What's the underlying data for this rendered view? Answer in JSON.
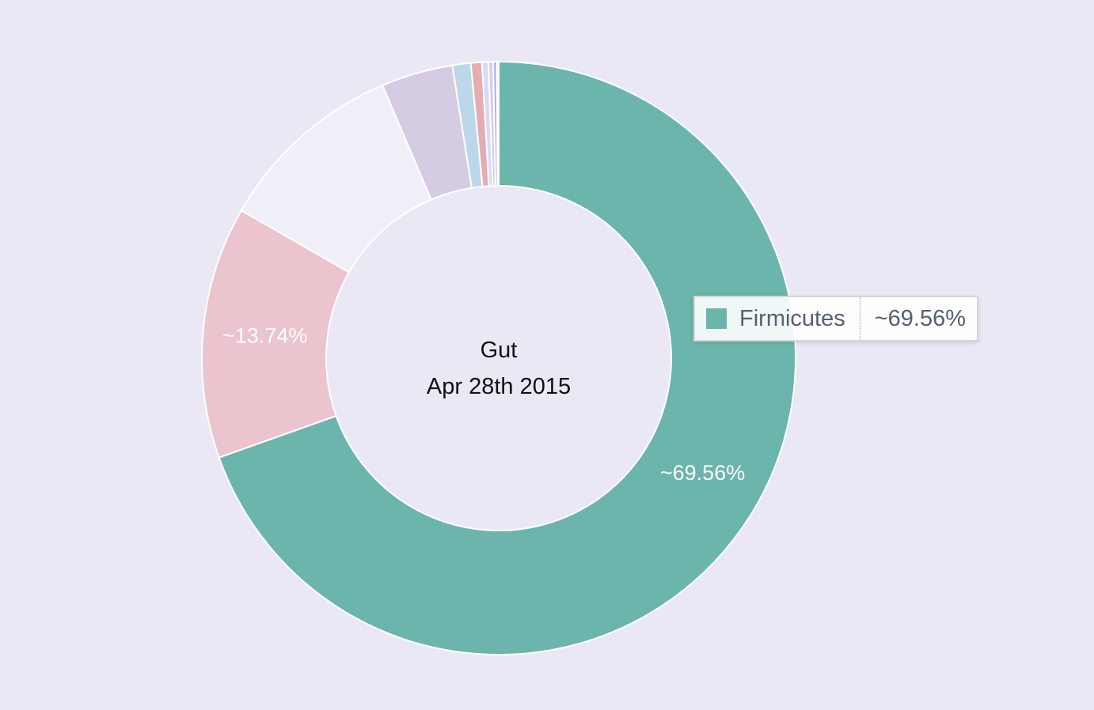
{
  "chart_data": {
    "type": "pie",
    "variant": "donut",
    "center_title": "Gut",
    "center_subtitle": "Apr 28th 2015",
    "slices": [
      {
        "name": "Firmicutes",
        "value": 69.56,
        "color": "#6bb5ad",
        "label": "~69.56%"
      },
      {
        "name": "",
        "value": 13.74,
        "color": "#ebc4ce",
        "label": "~13.74%"
      },
      {
        "name": "",
        "value": 10.3,
        "color": "#f0eef7",
        "label": ""
      },
      {
        "name": "",
        "value": 3.9,
        "color": "#d5cce3",
        "label": ""
      },
      {
        "name": "",
        "value": 1.0,
        "color": "#bcd7ea",
        "label": ""
      },
      {
        "name": "",
        "value": 0.6,
        "color": "#e3adb2",
        "label": ""
      },
      {
        "name": "",
        "value": 0.35,
        "color": "#dbd9f2",
        "label": ""
      },
      {
        "name": "",
        "value": 0.25,
        "color": "#d1cdea",
        "label": ""
      },
      {
        "name": "",
        "value": 0.2,
        "color": "#b5b2df",
        "label": ""
      },
      {
        "name": "",
        "value": 0.1,
        "color": "#e9e6f5",
        "label": ""
      }
    ]
  },
  "tooltip": {
    "name": "Firmicutes",
    "value": "~69.56%",
    "color": "#6bb5ad"
  }
}
